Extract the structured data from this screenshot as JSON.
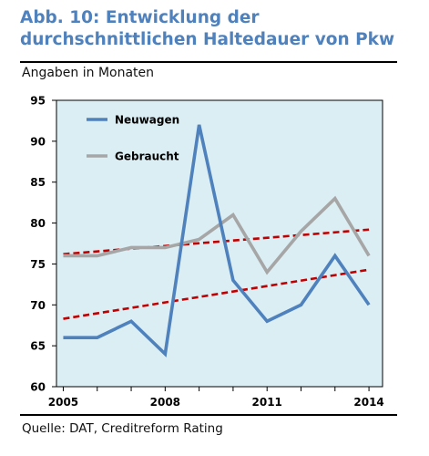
{
  "header": {
    "title": "Abb. 10: Entwicklung der durchschnittlichen Haltedauer von Pkw",
    "subtitle": "Angaben in Monaten"
  },
  "footer": {
    "source": "Quelle: DAT, Creditreform Rating"
  },
  "colors": {
    "title": "#4f81bd",
    "plot_background": "#dbeef4",
    "neuwagen": "#4f81bd",
    "gebraucht": "#a6a6a6",
    "trend": "#c00000"
  },
  "chart_data": {
    "type": "line",
    "x": [
      2005,
      2006,
      2007,
      2008,
      2009,
      2010,
      2011,
      2012,
      2013,
      2014
    ],
    "x_tick_labels": [
      "2005",
      "2008",
      "2011",
      "2014"
    ],
    "x_ticks": [
      2005,
      2008,
      2011,
      2014
    ],
    "ylim": [
      60,
      95
    ],
    "y_ticks": [
      60,
      65,
      70,
      75,
      80,
      85,
      90,
      95
    ],
    "grid": false,
    "legend_position": "top-left",
    "series": [
      {
        "name": "Neuwagen",
        "color": "#4f81bd",
        "values": [
          66,
          66,
          68,
          64,
          92,
          73,
          68,
          70,
          76,
          70
        ]
      },
      {
        "name": "Gebraucht",
        "color": "#a6a6a6",
        "values": [
          76,
          76,
          77,
          77,
          78,
          81,
          74,
          79,
          83,
          76
        ]
      }
    ],
    "trendlines": [
      {
        "for": "Neuwagen",
        "style": "dashed",
        "color": "#c00000",
        "start": [
          2005,
          68.3
        ],
        "end": [
          2014,
          74.3
        ]
      },
      {
        "for": "Gebraucht",
        "style": "dashed",
        "color": "#c00000",
        "start": [
          2005,
          76.2
        ],
        "end": [
          2014,
          79.2
        ]
      }
    ]
  }
}
